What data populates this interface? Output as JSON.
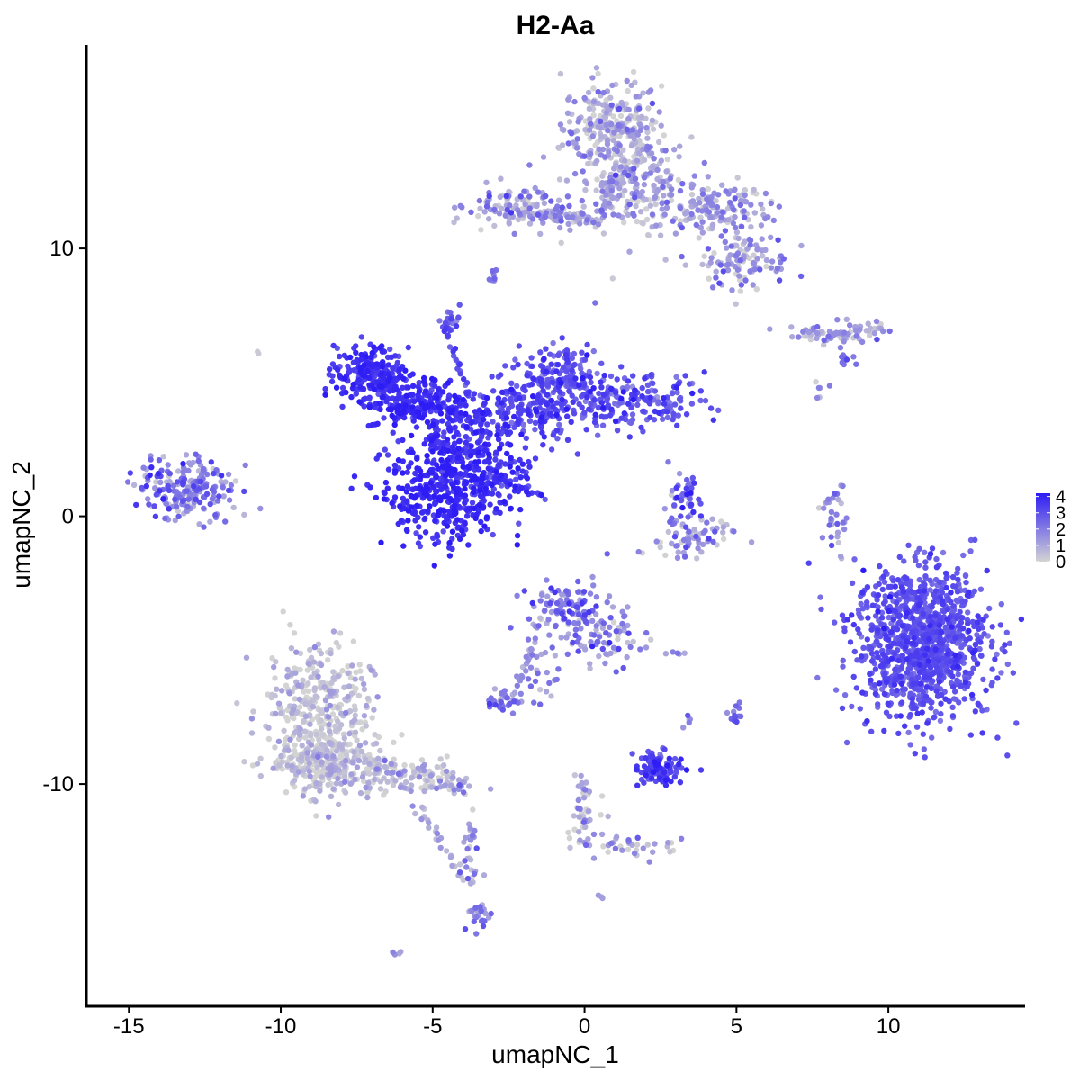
{
  "chart_data": {
    "type": "scatter",
    "title": "H2-Aa",
    "xlabel": "umapNC_1",
    "ylabel": "umapNC_2",
    "xlim": [
      -16.4,
      14.5
    ],
    "ylim": [
      -18.3,
      17.6
    ],
    "x_ticks": [
      -15,
      -10,
      -5,
      0,
      5,
      10
    ],
    "x_tick_labels": [
      "-15",
      "-10",
      "-5",
      "0",
      "5",
      "10"
    ],
    "y_ticks": [
      -10,
      0,
      10
    ],
    "y_tick_labels": [
      "-10",
      "0",
      "10"
    ],
    "grid": false,
    "color_scale": {
      "low_color": "#d3d3d3",
      "high_color": "#2e1cf5",
      "min": 0,
      "max": 4.2,
      "legend_ticks": [
        0,
        1,
        2,
        3,
        4
      ],
      "legend_tick_labels": [
        "0",
        "1",
        "2",
        "3",
        "4"
      ],
      "legend_placement": "right"
    },
    "clusters": [
      {
        "id": "c1",
        "cx": 0.9,
        "cy": 14.5,
        "sx": 0.8,
        "sy": 0.9,
        "n": 260,
        "value": 0.8,
        "spread": 0.8
      },
      {
        "id": "c2",
        "cx": 1.5,
        "cy": 12.5,
        "sx": 1.0,
        "sy": 0.9,
        "n": 220,
        "value": 0.9,
        "spread": 0.8
      },
      {
        "id": "c3",
        "cx": 4.3,
        "cy": 11.5,
        "sx": 0.9,
        "sy": 0.5,
        "n": 150,
        "value": 1.0,
        "spread": 0.8
      },
      {
        "id": "c4",
        "cx": 5.3,
        "cy": 9.5,
        "sx": 0.7,
        "sy": 0.5,
        "n": 110,
        "value": 1.1,
        "spread": 0.9
      },
      {
        "id": "c5",
        "cx": -2.3,
        "cy": 11.5,
        "sx": 0.8,
        "sy": 0.4,
        "n": 110,
        "value": 1.1,
        "spread": 0.9
      },
      {
        "id": "c6",
        "cx": -0.6,
        "cy": 11.2,
        "sx": 0.6,
        "sy": 0.2,
        "n": 40,
        "value": 1.2,
        "spread": 0.9
      },
      {
        "id": "c7",
        "cx": -3.0,
        "cy": 8.9,
        "sx": 0.1,
        "sy": 0.2,
        "n": 8,
        "value": 2.0,
        "spread": 0.5
      },
      {
        "id": "c8",
        "cx": 9.0,
        "cy": 6.9,
        "sx": 0.4,
        "sy": 0.2,
        "n": 40,
        "value": 1.1,
        "spread": 0.8
      },
      {
        "id": "c9",
        "cx": 7.6,
        "cy": 6.8,
        "sx": 0.5,
        "sy": 0.15,
        "n": 25,
        "value": 1.3,
        "spread": 0.8
      },
      {
        "id": "c10",
        "cx": 8.7,
        "cy": 6.0,
        "sx": 0.2,
        "sy": 0.2,
        "n": 10,
        "value": 2.2,
        "spread": 0.5
      },
      {
        "id": "c11",
        "cx": -7.0,
        "cy": 5.3,
        "sx": 0.6,
        "sy": 0.5,
        "n": 220,
        "value": 3.6,
        "spread": 0.4
      },
      {
        "id": "c12",
        "cx": -5.5,
        "cy": 4.2,
        "sx": 0.8,
        "sy": 0.5,
        "n": 170,
        "value": 3.8,
        "spread": 0.4
      },
      {
        "id": "c13",
        "cx": -4.6,
        "cy": 0.8,
        "sx": 1.0,
        "sy": 0.9,
        "n": 380,
        "value": 3.8,
        "spread": 0.4
      },
      {
        "id": "c14",
        "cx": -3.7,
        "cy": 2.5,
        "sx": 0.8,
        "sy": 1.0,
        "n": 180,
        "value": 3.6,
        "spread": 0.4
      },
      {
        "id": "c15",
        "cx": -1.7,
        "cy": 4.0,
        "sx": 1.0,
        "sy": 0.6,
        "n": 200,
        "value": 3.2,
        "spread": 0.5
      },
      {
        "id": "c16",
        "cx": -0.8,
        "cy": 5.4,
        "sx": 0.6,
        "sy": 0.6,
        "n": 130,
        "value": 2.8,
        "spread": 0.6
      },
      {
        "id": "c17",
        "cx": 1.5,
        "cy": 4.3,
        "sx": 1.2,
        "sy": 0.5,
        "n": 200,
        "value": 2.8,
        "spread": 0.6
      },
      {
        "id": "c18",
        "cx": -4.5,
        "cy": 7.3,
        "sx": 0.2,
        "sy": 0.25,
        "n": 20,
        "value": 2.6,
        "spread": 0.6
      },
      {
        "id": "c19",
        "cx": -2.5,
        "cy": 1.6,
        "sx": 0.5,
        "sy": 0.3,
        "n": 40,
        "value": 3.4,
        "spread": 0.5
      },
      {
        "id": "c20",
        "cx": -13.1,
        "cy": 1.1,
        "sx": 0.8,
        "sy": 0.6,
        "n": 210,
        "value": 1.8,
        "spread": 1.0
      },
      {
        "id": "c21",
        "cx": 3.2,
        "cy": 0.6,
        "sx": 0.3,
        "sy": 0.5,
        "n": 45,
        "value": 2.3,
        "spread": 0.9
      },
      {
        "id": "c22",
        "cx": 3.4,
        "cy": -0.8,
        "sx": 0.8,
        "sy": 0.4,
        "n": 70,
        "value": 1.3,
        "spread": 0.9
      },
      {
        "id": "c23",
        "cx": 8.2,
        "cy": -0.3,
        "sx": 0.2,
        "sy": 0.8,
        "n": 25,
        "value": 1.5,
        "spread": 0.8
      },
      {
        "id": "c24",
        "cx": 11.1,
        "cy": -4.7,
        "sx": 1.1,
        "sy": 1.4,
        "n": 1100,
        "value": 2.9,
        "spread": 0.4
      },
      {
        "id": "c25",
        "cx": -0.5,
        "cy": -3.6,
        "sx": 0.7,
        "sy": 0.6,
        "n": 120,
        "value": 1.9,
        "spread": 0.9
      },
      {
        "id": "c26",
        "cx": 0.7,
        "cy": -4.6,
        "sx": 0.6,
        "sy": 0.5,
        "n": 60,
        "value": 1.6,
        "spread": 0.9
      },
      {
        "id": "c27",
        "cx": -1.5,
        "cy": -5.8,
        "sx": 0.3,
        "sy": 0.7,
        "n": 25,
        "value": 1.6,
        "spread": 0.8
      },
      {
        "id": "c28",
        "cx": -2.6,
        "cy": -6.9,
        "sx": 0.3,
        "sy": 0.2,
        "n": 35,
        "value": 2.0,
        "spread": 0.8
      },
      {
        "id": "c29",
        "cx": -8.8,
        "cy": -7.2,
        "sx": 0.9,
        "sy": 1.2,
        "n": 350,
        "value": 0.3,
        "spread": 0.6
      },
      {
        "id": "c30",
        "cx": -8.5,
        "cy": -9.2,
        "sx": 1.0,
        "sy": 0.6,
        "n": 250,
        "value": 0.35,
        "spread": 0.6
      },
      {
        "id": "c31",
        "cx": -6.2,
        "cy": -9.6,
        "sx": 0.9,
        "sy": 0.3,
        "n": 110,
        "value": 0.5,
        "spread": 0.7
      },
      {
        "id": "c32",
        "cx": -4.5,
        "cy": -10.1,
        "sx": 0.5,
        "sy": 0.2,
        "n": 35,
        "value": 0.8,
        "spread": 0.8
      },
      {
        "id": "c33",
        "cx": -3.8,
        "cy": -12.5,
        "sx": 0.15,
        "sy": 0.9,
        "n": 30,
        "value": 1.2,
        "spread": 0.9
      },
      {
        "id": "c34",
        "cx": -3.5,
        "cy": -14.9,
        "sx": 0.2,
        "sy": 0.3,
        "n": 25,
        "value": 1.9,
        "spread": 0.8
      },
      {
        "id": "c35",
        "cx": 2.4,
        "cy": -9.5,
        "sx": 0.4,
        "sy": 0.3,
        "n": 90,
        "value": 3.3,
        "spread": 0.5
      },
      {
        "id": "c36",
        "cx": 2.5,
        "cy": -8.8,
        "sx": 0.15,
        "sy": 0.3,
        "n": 10,
        "value": 3.0,
        "spread": 0.5
      },
      {
        "id": "c37",
        "cx": 5.0,
        "cy": -7.4,
        "sx": 0.15,
        "sy": 0.2,
        "n": 12,
        "value": 2.3,
        "spread": 0.6
      },
      {
        "id": "c38",
        "cx": 3.4,
        "cy": -7.6,
        "sx": 0.1,
        "sy": 0.15,
        "n": 5,
        "value": 2.0,
        "spread": 0.5
      },
      {
        "id": "c39",
        "cx": 0.0,
        "cy": -11.0,
        "sx": 0.3,
        "sy": 0.8,
        "n": 30,
        "value": 0.8,
        "spread": 0.8
      },
      {
        "id": "c40",
        "cx": 1.5,
        "cy": -12.3,
        "sx": 1.0,
        "sy": 0.2,
        "n": 40,
        "value": 0.8,
        "spread": 0.8
      },
      {
        "id": "c41",
        "cx": 2.8,
        "cy": -5.1,
        "sx": 0.2,
        "sy": 0.05,
        "n": 5,
        "value": 1.5,
        "spread": 0.5
      },
      {
        "id": "c42",
        "cx": -10.7,
        "cy": 6.1,
        "sx": 0.05,
        "sy": 0.05,
        "n": 2,
        "value": 0.1,
        "spread": 0.1
      },
      {
        "id": "c43",
        "cx": -6.1,
        "cy": -16.3,
        "sx": 0.1,
        "sy": 0.05,
        "n": 4,
        "value": 1.5,
        "spread": 0.5
      },
      {
        "id": "c44",
        "cx": 0.6,
        "cy": -14.2,
        "sx": 0.05,
        "sy": 0.05,
        "n": 3,
        "value": 1.2,
        "spread": 0.5
      },
      {
        "id": "c45",
        "cx": 7.7,
        "cy": 4.7,
        "sx": 0.15,
        "sy": 0.2,
        "n": 6,
        "value": 1.2,
        "spread": 0.6
      }
    ],
    "paths": [
      {
        "id": "p1",
        "from": [
          -7.3,
          4.4
        ],
        "to": [
          -3.3,
          3.8
        ],
        "n": 45,
        "width": 0.3,
        "value": 3.7
      },
      {
        "id": "p2",
        "from": [
          -3.0,
          1.5
        ],
        "to": [
          -1.3,
          0.7
        ],
        "n": 25,
        "width": 0.1,
        "value": 3.5
      },
      {
        "id": "p3",
        "from": [
          -4.6,
          7.1
        ],
        "to": [
          -3.8,
          4.5
        ],
        "n": 22,
        "width": 0.1,
        "value": 3.0
      },
      {
        "id": "p4",
        "from": [
          -5.0,
          3.0
        ],
        "to": [
          -4.0,
          2.0
        ],
        "n": 30,
        "width": 0.3,
        "value": 3.7
      },
      {
        "id": "p5",
        "from": [
          -1.2,
          11.2
        ],
        "to": [
          0.5,
          11.0
        ],
        "n": 20,
        "width": 0.15,
        "value": 1.0
      },
      {
        "id": "p6",
        "from": [
          0.5,
          11.0
        ],
        "to": [
          1.0,
          12.8
        ],
        "n": 25,
        "width": 0.3,
        "value": 0.7
      },
      {
        "id": "p7",
        "from": [
          7.2,
          6.9
        ],
        "to": [
          8.6,
          6.8
        ],
        "n": 20,
        "width": 0.1,
        "value": 1.1
      },
      {
        "id": "p8",
        "from": [
          -1.5,
          -4.0
        ],
        "to": [
          -2.3,
          -6.7
        ],
        "n": 25,
        "width": 0.15,
        "value": 1.4
      },
      {
        "id": "p9",
        "from": [
          -6.0,
          -10.0
        ],
        "to": [
          -3.8,
          -13.8
        ],
        "n": 30,
        "width": 0.15,
        "value": 1.0
      },
      {
        "id": "p10",
        "from": [
          -0.1,
          -9.5
        ],
        "to": [
          0.2,
          -11.5
        ],
        "n": 15,
        "width": 0.1,
        "value": 0.8
      },
      {
        "id": "p11",
        "from": [
          8.0,
          0.5
        ],
        "to": [
          8.5,
          1.2
        ],
        "n": 8,
        "width": 0.05,
        "value": 1.6
      }
    ]
  }
}
